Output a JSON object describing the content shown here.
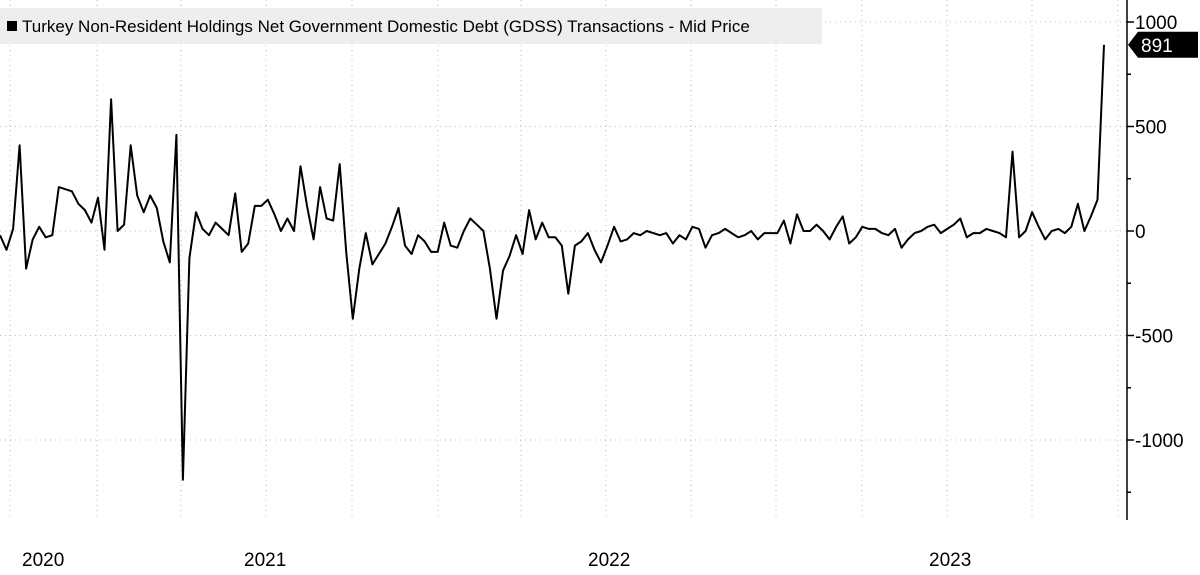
{
  "chart_data": {
    "type": "line",
    "title": "",
    "xlabel": "",
    "ylabel": "",
    "ylim": [
      -1400,
      1050
    ],
    "y_ticks": [
      1000,
      500,
      0,
      -500,
      -1000
    ],
    "y_tick_labels": [
      "1000",
      "500",
      "0",
      "-500",
      "-1000"
    ],
    "x_tick_labels": [
      "2020",
      "2021",
      "2022",
      "2023"
    ],
    "grid": true,
    "legend_position": "top-left",
    "colors": {
      "series": "#000000",
      "grid": "#bdbdbd",
      "legend_bg": "#eeeeee",
      "last_value_bg": "#000000"
    },
    "last_value_label": "891",
    "series": [
      {
        "name": "Turkey Non-Resident Holdings Net Government Domestic Debt (GDSS) Transactions - Mid Price",
        "values": [
          -20,
          -90,
          10,
          410,
          -180,
          -40,
          20,
          -30,
          -20,
          210,
          200,
          190,
          130,
          100,
          40,
          160,
          -90,
          630,
          0,
          30,
          410,
          170,
          90,
          170,
          110,
          -50,
          -150,
          460,
          -1190,
          -130,
          90,
          10,
          -20,
          40,
          10,
          -20,
          180,
          -100,
          -60,
          120,
          120,
          150,
          80,
          0,
          60,
          0,
          310,
          120,
          -40,
          210,
          60,
          50,
          320,
          -100,
          -420,
          -180,
          -10,
          -160,
          -110,
          -60,
          20,
          110,
          -70,
          -110,
          -20,
          -50,
          -100,
          -100,
          40,
          -70,
          -80,
          0,
          60,
          30,
          0,
          -180,
          -420,
          -190,
          -120,
          -20,
          -110,
          100,
          -40,
          40,
          -30,
          -30,
          -70,
          -300,
          -70,
          -50,
          -10,
          -90,
          -150,
          -70,
          20,
          -50,
          -40,
          -10,
          -20,
          0,
          -10,
          -20,
          -10,
          -60,
          -20,
          -40,
          20,
          10,
          -80,
          -20,
          -10,
          10,
          -10,
          -30,
          -20,
          0,
          -40,
          -10,
          -10,
          -10,
          50,
          -60,
          80,
          0,
          0,
          30,
          0,
          -40,
          20,
          70,
          -60,
          -30,
          20,
          10,
          10,
          -10,
          -20,
          10,
          -80,
          -40,
          -10,
          0,
          20,
          30,
          -10,
          10,
          30,
          60,
          -30,
          -10,
          -10,
          10,
          0,
          -10,
          -30,
          380,
          -30,
          0,
          90,
          20,
          -40,
          0,
          10,
          -10,
          20,
          130,
          0,
          70,
          150,
          891
        ]
      }
    ]
  }
}
